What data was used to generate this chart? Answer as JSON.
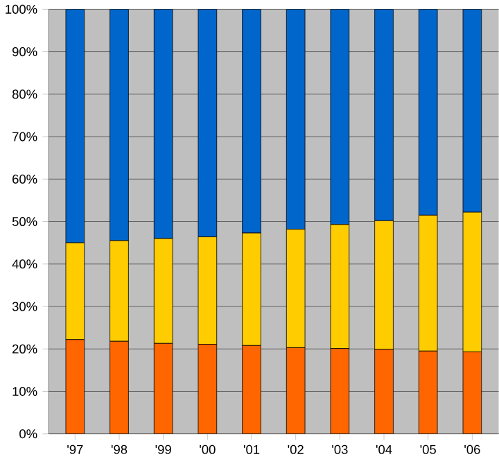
{
  "chart_data": {
    "type": "bar",
    "stacked": true,
    "categories": [
      "'97",
      "'98",
      "'99",
      "'00",
      "'01",
      "'02",
      "'03",
      "'04",
      "'05",
      "'06"
    ],
    "series": [
      {
        "color": "#ff6600",
        "values": [
          22.2,
          21.8,
          21.3,
          21.1,
          20.8,
          20.3,
          20.1,
          19.9,
          19.5,
          19.3
        ]
      },
      {
        "color": "#ffcc00",
        "values": [
          22.8,
          23.7,
          24.7,
          25.3,
          26.5,
          27.9,
          29.2,
          30.3,
          32.0,
          32.9
        ]
      },
      {
        "color": "#0066cc",
        "values": [
          55.0,
          54.5,
          54.0,
          53.6,
          52.7,
          51.8,
          50.7,
          49.8,
          48.5,
          47.8
        ]
      }
    ],
    "ylim": [
      0,
      100
    ],
    "yticks": [
      {
        "value": 0,
        "label": "0%"
      },
      {
        "value": 10,
        "label": "10%"
      },
      {
        "value": 20,
        "label": "20%"
      },
      {
        "value": 30,
        "label": "30%"
      },
      {
        "value": 40,
        "label": "40%"
      },
      {
        "value": 50,
        "label": "50%"
      },
      {
        "value": 60,
        "label": "60%"
      },
      {
        "value": 70,
        "label": "70%"
      },
      {
        "value": 80,
        "label": "80%"
      },
      {
        "value": 90,
        "label": "90%"
      },
      {
        "value": 100,
        "label": "100%"
      }
    ],
    "grid": "y"
  }
}
